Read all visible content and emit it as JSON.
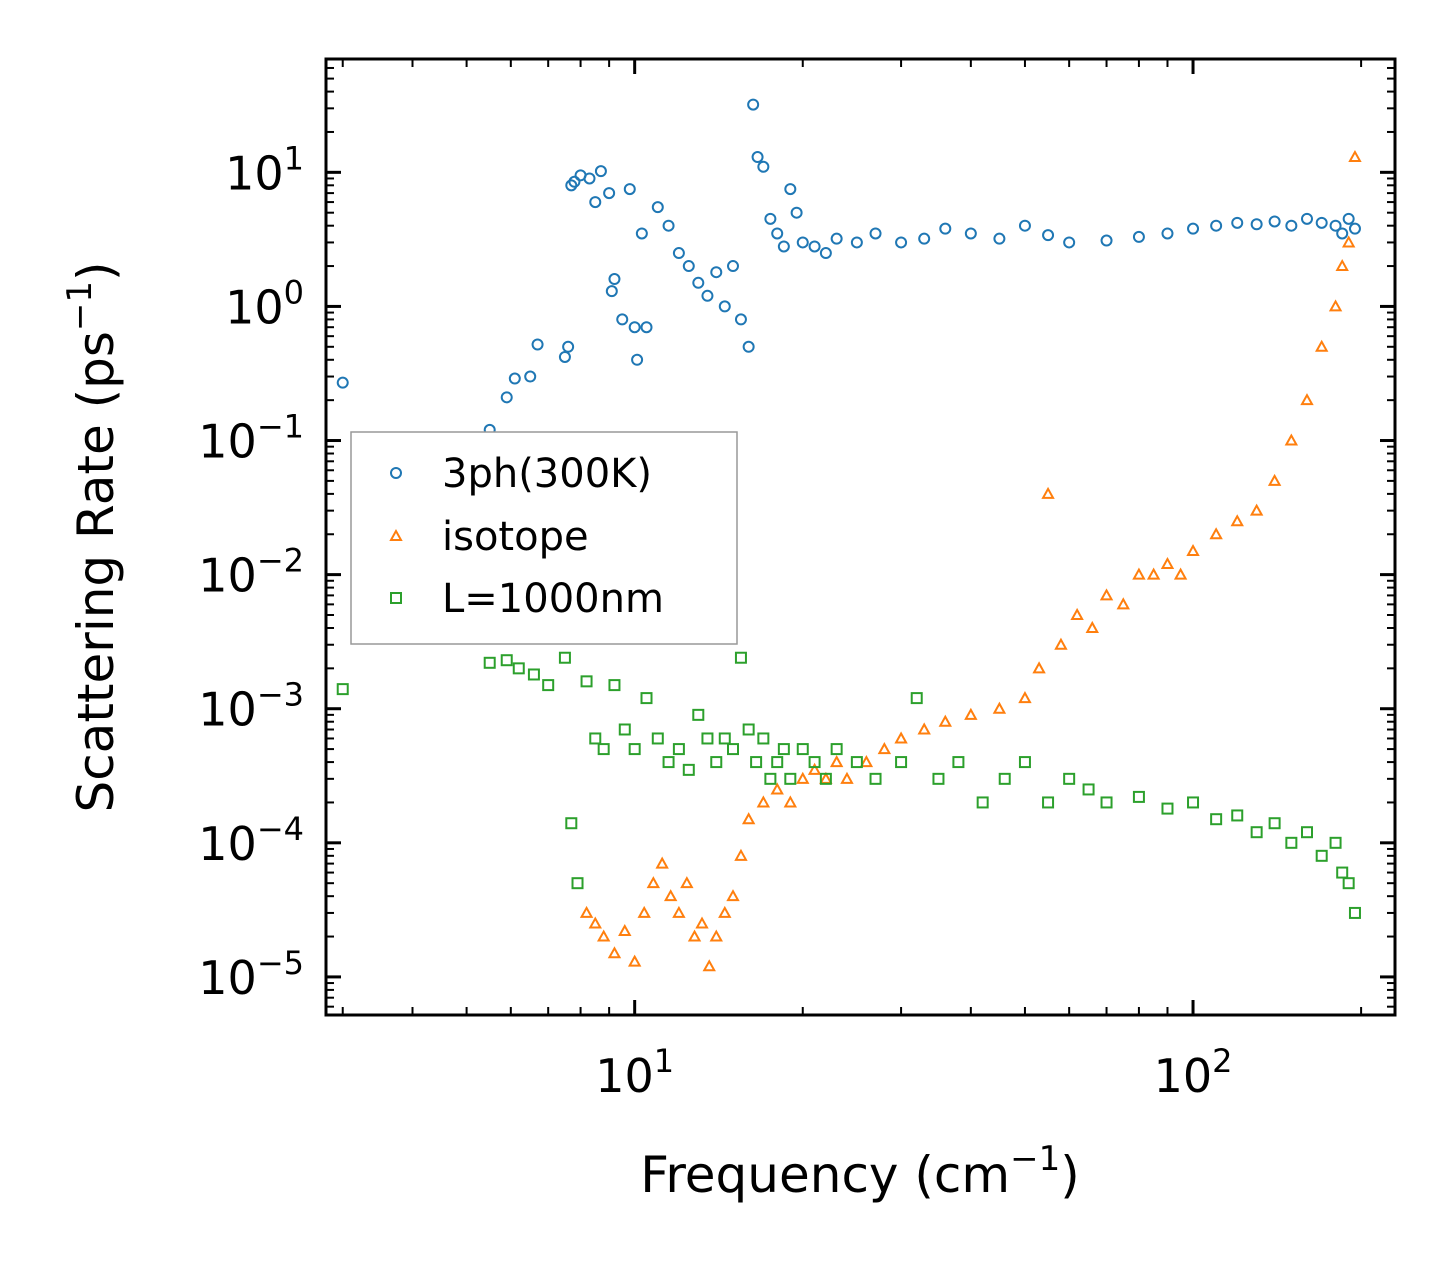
{
  "chart_data": {
    "type": "scatter",
    "xscale": "log",
    "yscale": "log",
    "xlim": [
      2.8,
      230
    ],
    "ylim": [
      5.2e-06,
      70
    ],
    "xlabel": "Frequency (cm",
    "xlabel_sup": "−1",
    "xlabel_end": ")",
    "ylabel": "Scattering Rate (ps",
    "ylabel_sup": "−1",
    "ylabel_end": ")",
    "x_ticks": [
      {
        "value": 10,
        "base": "10",
        "exp": "1"
      },
      {
        "value": 100,
        "base": "10",
        "exp": "2"
      }
    ],
    "y_ticks": [
      {
        "value": 10,
        "base": "10",
        "exp": "1"
      },
      {
        "value": 1,
        "base": "10",
        "exp": "0"
      },
      {
        "value": 0.1,
        "base": "10",
        "exp": "−1"
      },
      {
        "value": 0.01,
        "base": "10",
        "exp": "−2"
      },
      {
        "value": 0.001,
        "base": "10",
        "exp": "−3"
      },
      {
        "value": 0.0001,
        "base": "10",
        "exp": "−4"
      },
      {
        "value": 1e-05,
        "base": "10",
        "exp": "−5"
      }
    ],
    "legend_position": "center-left",
    "series": [
      {
        "name": "3ph(300K)",
        "marker": "circle",
        "color": "#1f77b4",
        "x": [
          3.0,
          5.5,
          5.9,
          6.1,
          6.5,
          6.7,
          7.5,
          7.6,
          7.7,
          7.8,
          8.0,
          8.3,
          8.5,
          8.7,
          9.0,
          9.1,
          9.2,
          9.5,
          9.8,
          10.0,
          10.1,
          10.3,
          10.5,
          11.0,
          11.5,
          12.0,
          12.5,
          13.0,
          13.5,
          14.0,
          14.5,
          15.0,
          15.5,
          16.0,
          16.3,
          16.6,
          17.0,
          17.5,
          18.0,
          18.5,
          19.0,
          19.5,
          20.0,
          21.0,
          22.0,
          23.0,
          25.0,
          27.0,
          30.0,
          33.0,
          36.0,
          40.0,
          45.0,
          50.0,
          55.0,
          60.0,
          70.0,
          80.0,
          90.0,
          100.0,
          110.0,
          120.0,
          130.0,
          140.0,
          150.0,
          160.0,
          170.0,
          180.0,
          185.0,
          190.0,
          195.0
        ],
        "y": [
          0.27,
          0.12,
          0.21,
          0.29,
          0.3,
          0.52,
          0.42,
          0.5,
          8.0,
          8.5,
          9.5,
          9.0,
          6.0,
          10.2,
          7.0,
          1.3,
          1.6,
          0.8,
          7.5,
          0.7,
          0.4,
          3.5,
          0.7,
          5.5,
          4.0,
          2.5,
          2.0,
          1.5,
          1.2,
          1.8,
          1.0,
          2.0,
          0.8,
          0.5,
          32.0,
          13.0,
          11.0,
          4.5,
          3.5,
          2.8,
          7.5,
          5.0,
          3.0,
          2.8,
          2.5,
          3.2,
          3.0,
          3.5,
          3.0,
          3.2,
          3.8,
          3.5,
          3.2,
          4.0,
          3.4,
          3.0,
          3.1,
          3.3,
          3.5,
          3.8,
          4.0,
          4.2,
          4.1,
          4.3,
          4.0,
          4.5,
          4.2,
          4.0,
          3.5,
          4.5,
          3.8
        ]
      },
      {
        "name": "isotope",
        "marker": "triangle",
        "color": "#ff7f0e",
        "x": [
          8.2,
          8.5,
          8.8,
          9.2,
          9.6,
          10.0,
          10.4,
          10.8,
          11.2,
          11.6,
          12.0,
          12.4,
          12.8,
          13.2,
          13.6,
          14.0,
          14.5,
          15.0,
          15.5,
          16.0,
          17.0,
          18.0,
          19.0,
          20.0,
          21.0,
          22.0,
          23.0,
          24.0,
          26.0,
          28.0,
          30.0,
          33.0,
          36.0,
          40.0,
          45.0,
          50.0,
          53.0,
          55.0,
          58.0,
          62.0,
          66.0,
          70.0,
          75.0,
          80.0,
          85.0,
          90.0,
          95.0,
          100.0,
          110.0,
          120.0,
          130.0,
          140.0,
          150.0,
          160.0,
          170.0,
          180.0,
          185.0,
          190.0,
          195.0
        ],
        "y": [
          3e-05,
          2.5e-05,
          2e-05,
          1.5e-05,
          2.2e-05,
          1.3e-05,
          3e-05,
          5e-05,
          7e-05,
          4e-05,
          3e-05,
          5e-05,
          2e-05,
          2.5e-05,
          1.2e-05,
          2e-05,
          3e-05,
          4e-05,
          8e-05,
          0.00015,
          0.0002,
          0.00025,
          0.0002,
          0.0003,
          0.00035,
          0.0003,
          0.0004,
          0.0003,
          0.0004,
          0.0005,
          0.0006,
          0.0007,
          0.0008,
          0.0009,
          0.001,
          0.0012,
          0.002,
          0.04,
          0.003,
          0.005,
          0.004,
          0.007,
          0.006,
          0.01,
          0.01,
          0.012,
          0.01,
          0.015,
          0.02,
          0.025,
          0.03,
          0.05,
          0.1,
          0.2,
          0.5,
          1.0,
          2.0,
          3.0,
          13.0
        ]
      },
      {
        "name": "L=1000nm",
        "marker": "square",
        "color": "#2ca02c",
        "x": [
          3.0,
          5.5,
          5.9,
          6.2,
          6.6,
          7.0,
          7.5,
          7.7,
          7.9,
          8.2,
          8.5,
          8.8,
          9.2,
          9.6,
          10.0,
          10.5,
          11.0,
          11.5,
          12.0,
          12.5,
          13.0,
          13.5,
          14.0,
          14.5,
          15.0,
          15.5,
          16.0,
          16.5,
          17.0,
          17.5,
          18.0,
          18.5,
          19.0,
          20.0,
          21.0,
          22.0,
          23.0,
          25.0,
          27.0,
          30.0,
          32.0,
          35.0,
          38.0,
          42.0,
          46.0,
          50.0,
          55.0,
          60.0,
          65.0,
          70.0,
          80.0,
          90.0,
          100.0,
          110.0,
          120.0,
          130.0,
          140.0,
          150.0,
          160.0,
          170.0,
          180.0,
          185.0,
          190.0,
          195.0
        ],
        "y": [
          0.0014,
          0.0022,
          0.0023,
          0.002,
          0.0018,
          0.0015,
          0.0024,
          0.00014,
          5e-05,
          0.0016,
          0.0006,
          0.0005,
          0.0015,
          0.0007,
          0.0005,
          0.0012,
          0.0006,
          0.0004,
          0.0005,
          0.00035,
          0.0009,
          0.0006,
          0.0004,
          0.0006,
          0.0005,
          0.0024,
          0.0007,
          0.0004,
          0.0006,
          0.0003,
          0.0004,
          0.0005,
          0.0003,
          0.0005,
          0.0004,
          0.0003,
          0.0005,
          0.0004,
          0.0003,
          0.0004,
          0.0012,
          0.0003,
          0.0004,
          0.0002,
          0.0003,
          0.0004,
          0.0002,
          0.0003,
          0.00025,
          0.0002,
          0.00022,
          0.00018,
          0.0002,
          0.00015,
          0.00016,
          0.00012,
          0.00014,
          0.0001,
          0.00012,
          8e-05,
          0.0001,
          6e-05,
          5e-05,
          3e-05
        ]
      }
    ]
  }
}
